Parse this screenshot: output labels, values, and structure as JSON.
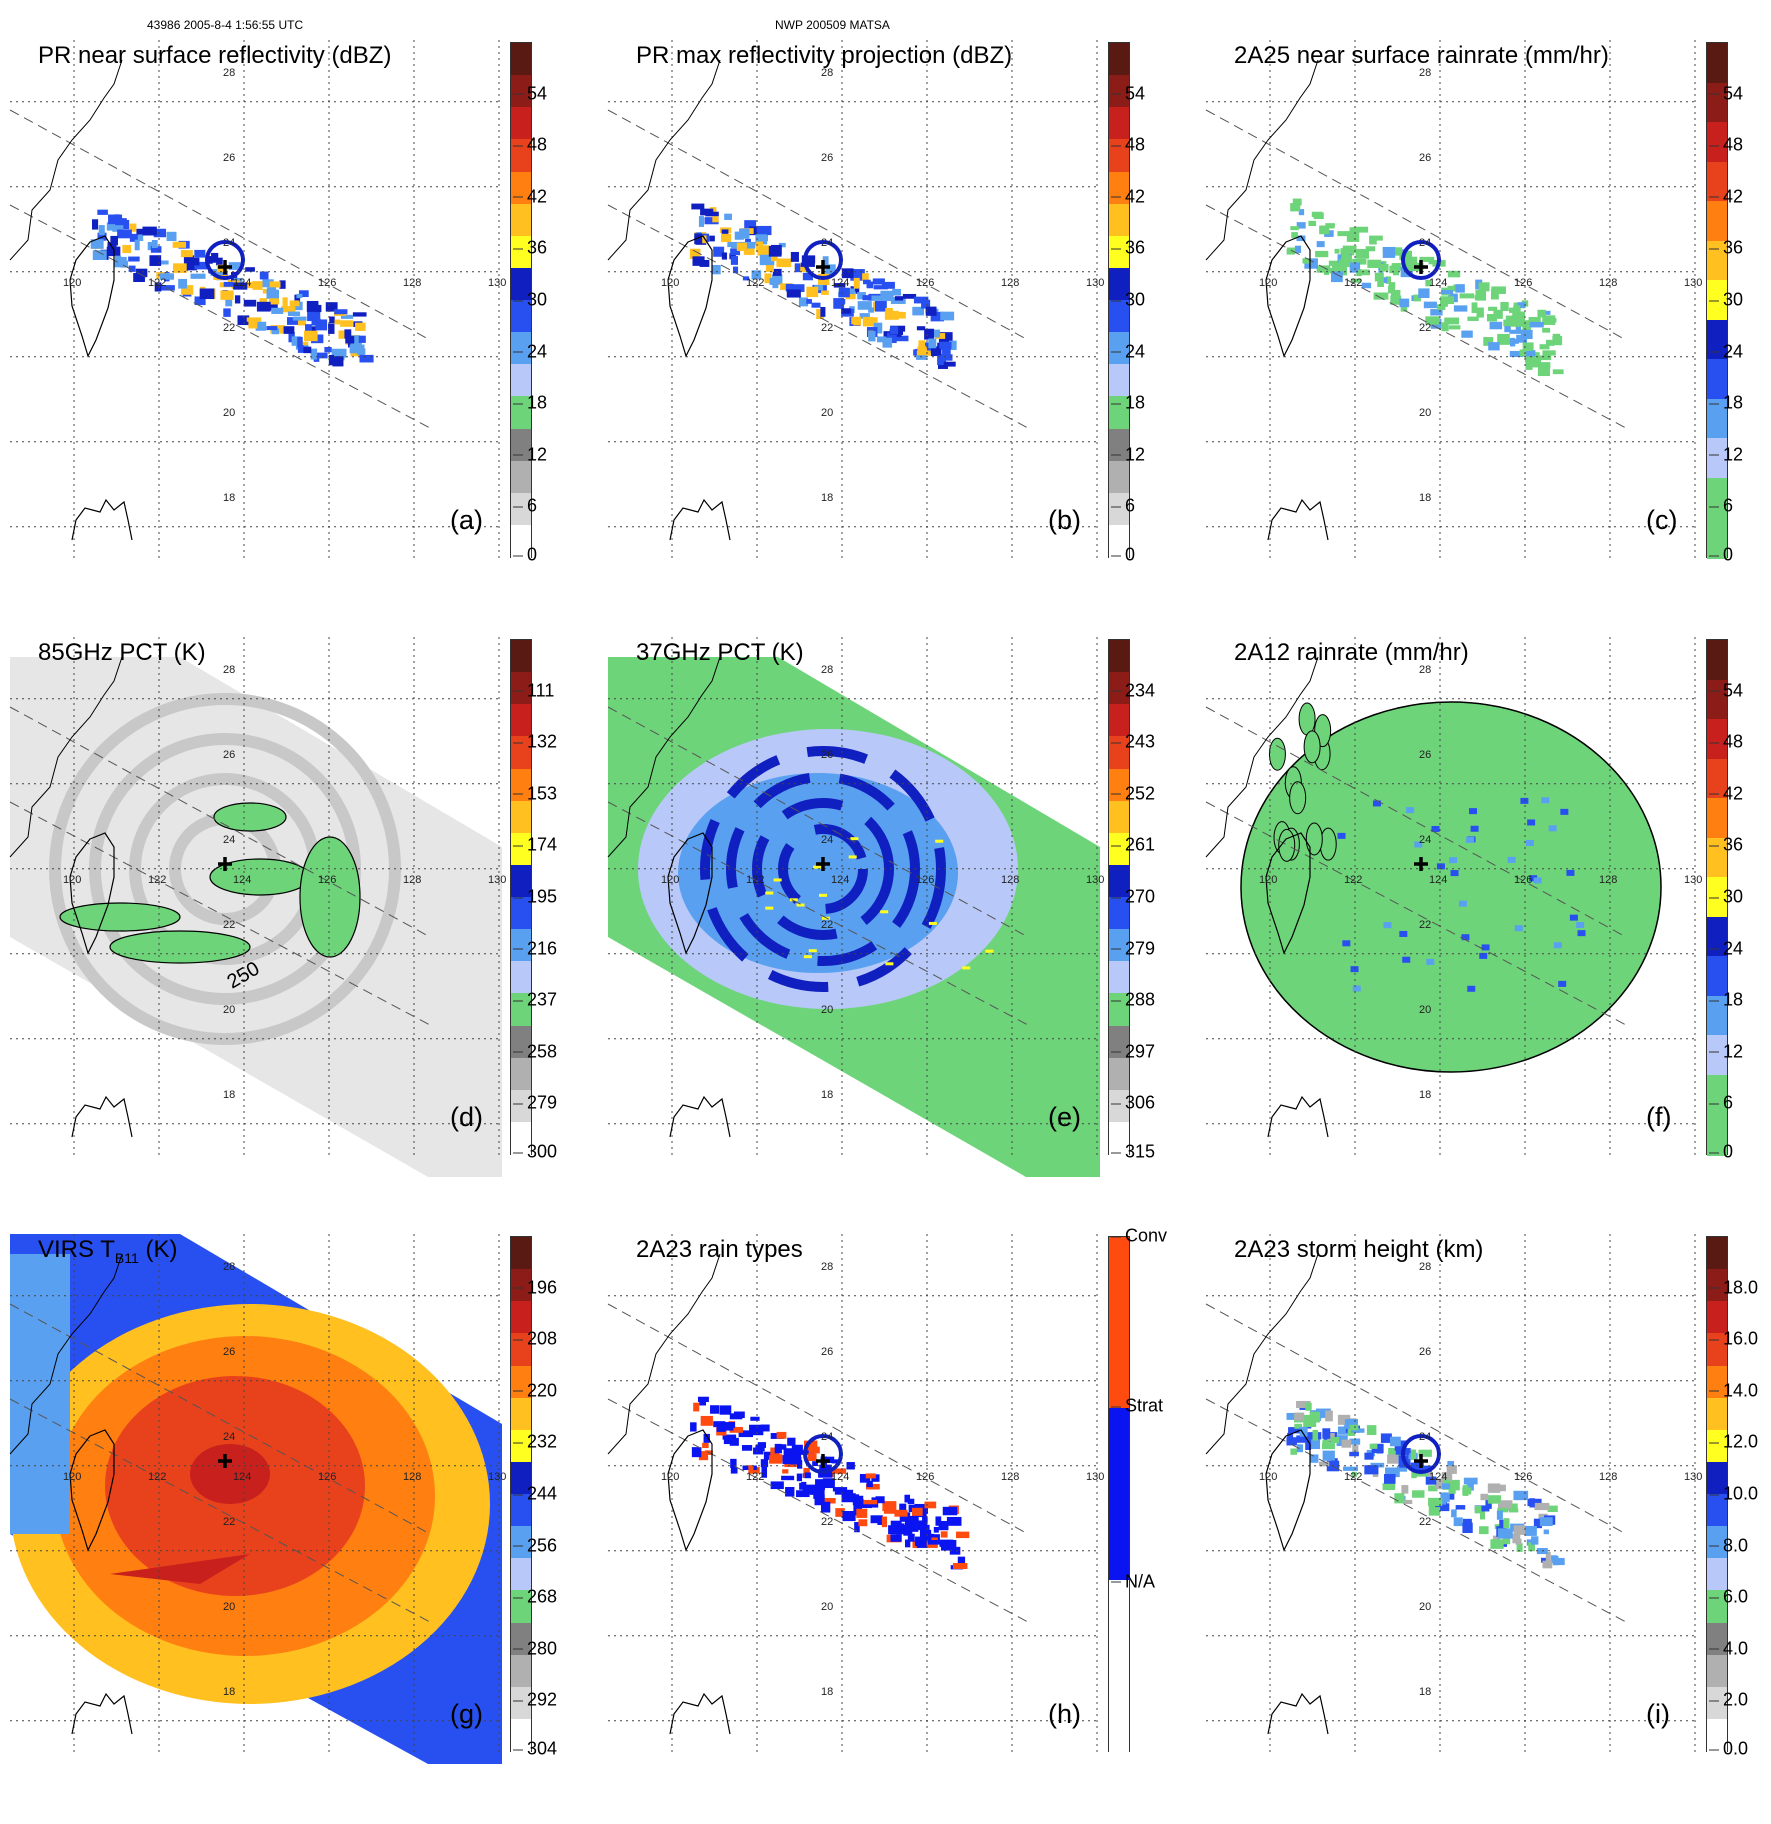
{
  "header": {
    "left": "43986 2005-8-4 1:56:55 UTC",
    "center": "NWP 200509 MATSA"
  },
  "map": {
    "lat_labels": [
      "28",
      "26",
      "24",
      "22",
      "20",
      "18"
    ],
    "lon_labels": [
      "120",
      "122",
      "124",
      "126",
      "128",
      "130"
    ]
  },
  "panels": [
    {
      "id": "a",
      "title": "PR near surface reflectivity (dBZ)",
      "letter": "(a)",
      "kind": "swath_narrow",
      "palette": "reflectivity",
      "ticks": [
        "54",
        "48",
        "42",
        "36",
        "30",
        "24",
        "18",
        "12",
        "6",
        "0"
      ],
      "colors": [
        "#5a1a14",
        "#8b1c18",
        "#c8201c",
        "#e8421c",
        "#ff7f10",
        "#ffc020",
        "#ffff20",
        "#1020c0",
        "#2850f0",
        "#5aa0f0",
        "#b8c8f8",
        "#6ed47a",
        "#808080",
        "#b0b0b0",
        "#d8d8d8",
        "#ffffff"
      ]
    },
    {
      "id": "b",
      "title": "PR max reflectivity projection (dBZ)",
      "letter": "(b)",
      "kind": "swath_narrow",
      "palette": "reflectivity",
      "ticks": [
        "54",
        "48",
        "42",
        "36",
        "30",
        "24",
        "18",
        "12",
        "6",
        "0"
      ],
      "colors": [
        "#5a1a14",
        "#8b1c18",
        "#c8201c",
        "#e8421c",
        "#ff7f10",
        "#ffc020",
        "#ffff20",
        "#1020c0",
        "#2850f0",
        "#5aa0f0",
        "#b8c8f8",
        "#6ed47a",
        "#808080",
        "#b0b0b0",
        "#d8d8d8",
        "#ffffff"
      ]
    },
    {
      "id": "c",
      "title": "2A25 near surface rainrate (mm/hr)",
      "letter": "(c)",
      "kind": "swath_narrow",
      "palette": "rain",
      "ticks": [
        "54",
        "48",
        "42",
        "36",
        "30",
        "24",
        "18",
        "12",
        "6",
        "0"
      ],
      "colors": [
        "#5a1a14",
        "#8b1c18",
        "#c8201c",
        "#e8421c",
        "#ff7f10",
        "#ffc020",
        "#ffff20",
        "#1020c0",
        "#2850f0",
        "#5aa0f0",
        "#b8c8f8",
        "#6ed47a",
        "#6ed47a"
      ]
    },
    {
      "id": "d",
      "title": "85GHz PCT (K)",
      "letter": "(d)",
      "kind": "swath_wide",
      "palette": "pct85",
      "ticks": [
        "111",
        "132",
        "153",
        "174",
        "195",
        "216",
        "237",
        "258",
        "279",
        "300"
      ],
      "contour_label": "250",
      "colors": [
        "#5a1a14",
        "#8b1c18",
        "#c8201c",
        "#e8421c",
        "#ff7f10",
        "#ffc020",
        "#ffff20",
        "#1020c0",
        "#2850f0",
        "#5aa0f0",
        "#b8c8f8",
        "#6ed47a",
        "#808080",
        "#b0b0b0",
        "#d8d8d8",
        "#ffffff"
      ]
    },
    {
      "id": "e",
      "title": "37GHz PCT (K)",
      "letter": "(e)",
      "kind": "swath_wide",
      "palette": "pct37",
      "ticks": [
        "234",
        "243",
        "252",
        "261",
        "270",
        "279",
        "288",
        "297",
        "306",
        "315"
      ],
      "colors": [
        "#5a1a14",
        "#8b1c18",
        "#c8201c",
        "#e8421c",
        "#ff7f10",
        "#ffc020",
        "#ffff20",
        "#1020c0",
        "#2850f0",
        "#5aa0f0",
        "#b8c8f8",
        "#6ed47a",
        "#808080",
        "#b0b0b0",
        "#d8d8d8",
        "#ffffff"
      ]
    },
    {
      "id": "f",
      "title": "2A12 rainrate (mm/hr)",
      "letter": "(f)",
      "kind": "disk",
      "palette": "rain",
      "ticks": [
        "54",
        "48",
        "42",
        "36",
        "30",
        "24",
        "18",
        "12",
        "6",
        "0"
      ],
      "colors": [
        "#5a1a14",
        "#8b1c18",
        "#c8201c",
        "#e8421c",
        "#ff7f10",
        "#ffc020",
        "#ffff20",
        "#1020c0",
        "#2850f0",
        "#5aa0f0",
        "#b8c8f8",
        "#6ed47a",
        "#6ed47a"
      ]
    },
    {
      "id": "g",
      "title": "VIRS T",
      "title_sub": "B11",
      "title_tail": " (K)",
      "letter": "(g)",
      "kind": "ir",
      "palette": "ir",
      "ticks": [
        "196",
        "208",
        "220",
        "232",
        "244",
        "256",
        "268",
        "280",
        "292",
        "304"
      ],
      "colors": [
        "#5a1a14",
        "#8b1c18",
        "#c8201c",
        "#e8421c",
        "#ff7f10",
        "#ffc020",
        "#ffff20",
        "#1020c0",
        "#2850f0",
        "#5aa0f0",
        "#b8c8f8",
        "#6ed47a",
        "#808080",
        "#b0b0b0",
        "#d8d8d8",
        "#ffffff"
      ]
    },
    {
      "id": "h",
      "title": "2A23 rain types",
      "letter": "(h)",
      "kind": "swath_narrow",
      "palette": "types",
      "ticks": [
        "Conv",
        "Strat",
        "N/A"
      ],
      "colors": [
        "#ff4a10",
        "#0a14f0",
        "#ffffff"
      ]
    },
    {
      "id": "i",
      "title": "2A23 storm height (km)",
      "letter": "(i)",
      "kind": "swath_narrow",
      "palette": "height",
      "ticks": [
        "18.0",
        "16.0",
        "14.0",
        "12.0",
        "10.0",
        "8.0",
        "6.0",
        "4.0",
        "2.0",
        "0.0"
      ],
      "colors": [
        "#5a1a14",
        "#8b1c18",
        "#c8201c",
        "#e8421c",
        "#ff7f10",
        "#ffc020",
        "#ffff20",
        "#1020c0",
        "#2850f0",
        "#5aa0f0",
        "#b8c8f8",
        "#6ed47a",
        "#808080",
        "#b0b0b0",
        "#d8d8d8",
        "#ffffff"
      ]
    }
  ]
}
